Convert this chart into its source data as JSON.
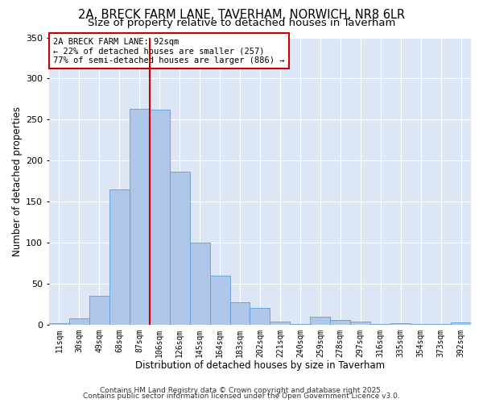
{
  "title_line1": "2A, BRECK FARM LANE, TAVERHAM, NORWICH, NR8 6LR",
  "title_line2": "Size of property relative to detached houses in Taverham",
  "xlabel": "Distribution of detached houses by size in Taverham",
  "ylabel": "Number of detached properties",
  "categories": [
    "11sqm",
    "30sqm",
    "49sqm",
    "68sqm",
    "87sqm",
    "106sqm",
    "126sqm",
    "145sqm",
    "164sqm",
    "183sqm",
    "202sqm",
    "221sqm",
    "240sqm",
    "259sqm",
    "278sqm",
    "297sqm",
    "316sqm",
    "335sqm",
    "354sqm",
    "373sqm",
    "392sqm"
  ],
  "values": [
    2,
    8,
    35,
    165,
    263,
    262,
    186,
    100,
    60,
    27,
    20,
    4,
    1,
    10,
    6,
    4,
    1,
    2,
    1,
    1,
    3
  ],
  "bar_color": "#aec6e8",
  "bar_edge_color": "#5a9fd4",
  "vline_x": 4.5,
  "vline_color": "#cc0000",
  "annotation_title": "2A BRECK FARM LANE: 92sqm",
  "annotation_line2": "← 22% of detached houses are smaller (257)",
  "annotation_line3": "77% of semi-detached houses are larger (886) →",
  "annotation_box_color": "#ffffff",
  "annotation_box_edge": "#cc0000",
  "ylim": [
    0,
    350
  ],
  "yticks": [
    0,
    50,
    100,
    150,
    200,
    250,
    300,
    350
  ],
  "background_color": "#dce6f5",
  "footer_line1": "Contains HM Land Registry data © Crown copyright and database right 2025.",
  "footer_line2": "Contains public sector information licensed under the Open Government Licence v3.0.",
  "title_fontsize": 10.5,
  "subtitle_fontsize": 9.5
}
